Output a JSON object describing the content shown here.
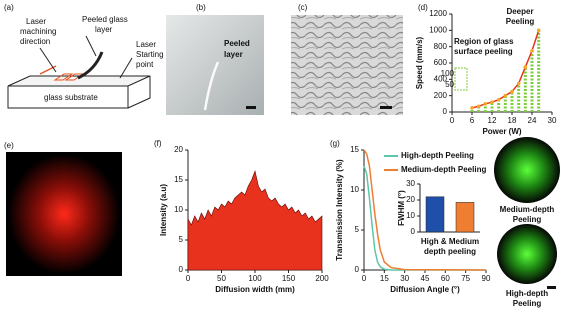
{
  "panels": {
    "a": {
      "label": "(a)",
      "laser_direction": [
        "Laser",
        "machining",
        "direction"
      ],
      "peeled_layer": [
        "Peeled glass",
        "layer"
      ],
      "starting_point": [
        "Laser",
        "Starting",
        "point"
      ],
      "substrate": "glass substrate"
    },
    "b": {
      "label": "(b)",
      "caption": [
        "Peeled",
        "layer"
      ]
    },
    "c": {
      "label": "(c)"
    },
    "e": {
      "label": "(e)"
    },
    "g_images": {
      "medium": [
        "Medium-depth",
        "Peeling"
      ],
      "high": [
        "High-depth",
        "Peeling"
      ]
    }
  },
  "chart_data": [
    {
      "type": "line",
      "panel": "(d)",
      "x": [
        6,
        8,
        10,
        12,
        14,
        16,
        18,
        20,
        22,
        24,
        26
      ],
      "values": [
        50,
        70,
        100,
        120,
        150,
        200,
        250,
        350,
        550,
        750,
        1000
      ],
      "color": "#e8321e",
      "column_color": "#7dcf3a",
      "xlabel": "Power (W)",
      "ylabel": "Speed (mm/s)",
      "xlim": [
        0,
        30
      ],
      "xticks": [
        0,
        6,
        12,
        18,
        24,
        30
      ],
      "ylim": [
        0,
        1200
      ],
      "yticks": [
        0,
        200,
        400,
        600,
        800,
        1000,
        1200
      ],
      "annotations": {
        "deeper": [
          "Deeper",
          "Peeling"
        ],
        "region": [
          "Region of glass",
          "surface peeling"
        ],
        "zoom": [
          "100",
          "50"
        ]
      }
    },
    {
      "type": "area",
      "panel": "(f)",
      "x": [
        0,
        5,
        10,
        15,
        20,
        25,
        30,
        35,
        40,
        45,
        50,
        55,
        60,
        65,
        70,
        75,
        80,
        85,
        90,
        95,
        100,
        105,
        110,
        115,
        120,
        125,
        130,
        135,
        140,
        145,
        150,
        155,
        160,
        165,
        170,
        175,
        180,
        185,
        190,
        195,
        200
      ],
      "values": [
        8.5,
        7.5,
        9,
        8,
        9.5,
        8.5,
        10,
        9,
        10.5,
        10,
        11,
        10.5,
        11.5,
        11,
        12,
        12.5,
        13,
        12.5,
        14,
        15,
        16.5,
        14,
        13,
        13.5,
        12,
        11.5,
        12,
        11,
        10.5,
        11,
        10,
        10.5,
        9.5,
        10,
        9,
        9.5,
        8.5,
        9,
        8,
        8.5,
        9
      ],
      "color": "#e8321e",
      "xlabel": "Diffusion width (mm)",
      "ylabel": "Intensity (a.u)",
      "xlim": [
        0,
        200
      ],
      "xticks": [
        0,
        50,
        100,
        150,
        200
      ],
      "ylim": [
        0,
        20
      ],
      "yticks": [
        0,
        5,
        10,
        15,
        20
      ]
    },
    {
      "type": "line",
      "panel": "(g)",
      "x": [
        0,
        2,
        4,
        6,
        8,
        10,
        12,
        15,
        20,
        30,
        90
      ],
      "series": [
        {
          "name": "High-depth Peeling",
          "color": "#5cc7a8",
          "values": [
            13,
            12,
            9,
            5.5,
            2.5,
            1,
            0.4,
            0.1,
            0,
            0,
            0
          ]
        },
        {
          "name": "Medium-depth Peeling",
          "color": "#ef7d32",
          "values": [
            15,
            14.5,
            13,
            10,
            7,
            4.5,
            2.5,
            1,
            0.3,
            0.05,
            0
          ]
        }
      ],
      "xlabel": "Diffusion Angle (°)",
      "ylabel": "Transmission Intensity (%)",
      "xlim": [
        0,
        90
      ],
      "xticks": [
        0,
        15,
        30,
        45,
        60,
        75,
        90
      ],
      "ylim": [
        0,
        15
      ],
      "yticks": [
        0,
        5,
        10,
        15
      ],
      "legend": "top-right"
    },
    {
      "type": "bar",
      "categories": [
        null,
        null
      ],
      "values": [
        22,
        18.5
      ],
      "colors": [
        "#1f4fa8",
        "#ef7d32"
      ],
      "ylabel": "FWHM (°)",
      "xlabel_lines": [
        "High & Medium",
        "depth peeling"
      ],
      "ylim": [
        0,
        30
      ],
      "yticks": [
        0,
        10,
        20,
        30
      ]
    }
  ]
}
